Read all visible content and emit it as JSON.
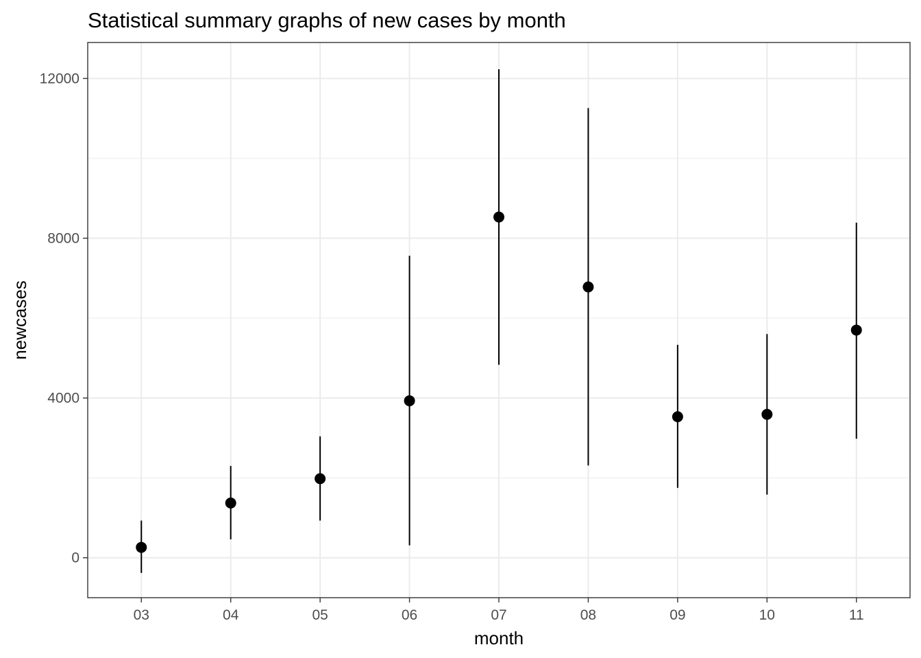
{
  "chart_data": {
    "type": "scatter",
    "title": "Statistical summary graphs of new cases by month",
    "xlabel": "month",
    "ylabel": "newcases",
    "categories": [
      "03",
      "04",
      "05",
      "06",
      "07",
      "08",
      "09",
      "10",
      "11"
    ],
    "series": [
      {
        "mean": [
          260,
          1370,
          1980,
          3930,
          8530,
          6780,
          3530,
          3590,
          5700
        ],
        "lower": [
          -380,
          460,
          930,
          310,
          4830,
          2310,
          1750,
          1580,
          2980
        ],
        "upper": [
          930,
          2300,
          3040,
          7560,
          12230,
          11260,
          5330,
          5600,
          8390
        ]
      }
    ],
    "ylim": [
      -1000,
      12900
    ],
    "yticks": [
      0,
      4000,
      8000,
      12000
    ],
    "ytick_labels": [
      "0",
      "4000",
      "8000",
      "12000"
    ],
    "grid": true,
    "legend": "none",
    "colors": {
      "point": "#000000",
      "errorbar": "#000000",
      "grid": "#ebebeb",
      "panel_border": "#333333",
      "tick_text": "#4d4d4d"
    }
  }
}
